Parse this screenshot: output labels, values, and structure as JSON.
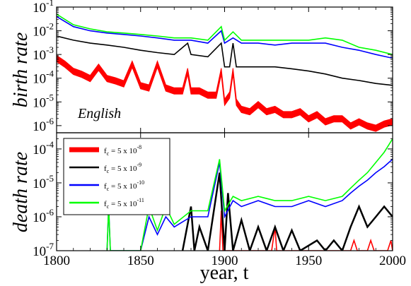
{
  "chart_data": [
    {
      "type": "line",
      "panel": "top",
      "ylabel": "birth rate",
      "annotation": "English",
      "y_scale": "log",
      "xlim": [
        1800,
        2000
      ],
      "ylim": [
        5e-07,
        0.1
      ],
      "y_ticks": [
        1e-06,
        1e-05,
        0.0001,
        0.001,
        0.01,
        0.1
      ],
      "y_tick_labels": [
        {
          "base": "10",
          "exp": "-6"
        },
        {
          "base": "10",
          "exp": "-5"
        },
        {
          "base": "10",
          "exp": "-4"
        },
        {
          "base": "10",
          "exp": "-3"
        },
        {
          "base": "10",
          "exp": "-2"
        },
        {
          "base": "10",
          "exp": "-1"
        }
      ],
      "series": [
        {
          "color": "#ff0000",
          "style": "band",
          "points": [
            [
              1800,
              0.0007
            ],
            [
              1805,
              0.0004
            ],
            [
              1810,
              0.0002
            ],
            [
              1815,
              0.00015
            ],
            [
              1820,
              0.0001
            ],
            [
              1825,
              0.0003
            ],
            [
              1830,
              0.0001
            ],
            [
              1835,
              8e-05
            ],
            [
              1840,
              6e-05
            ],
            [
              1845,
              0.0004
            ],
            [
              1850,
              5e-05
            ],
            [
              1855,
              4e-05
            ],
            [
              1860,
              0.0004
            ],
            [
              1865,
              4e-05
            ],
            [
              1870,
              3e-05
            ],
            [
              1875,
              3e-05
            ],
            [
              1878,
              0.0002
            ],
            [
              1880,
              3e-05
            ],
            [
              1885,
              3e-05
            ],
            [
              1890,
              2e-05
            ],
            [
              1895,
              2e-05
            ],
            [
              1898,
              0.0002
            ],
            [
              1900,
              1e-05
            ],
            [
              1903,
              2e-05
            ],
            [
              1905,
              0.0002
            ],
            [
              1907,
              1e-05
            ],
            [
              1910,
              5e-06
            ],
            [
              1915,
              4e-06
            ],
            [
              1920,
              8e-06
            ],
            [
              1925,
              4e-06
            ],
            [
              1930,
              5e-06
            ],
            [
              1935,
              3e-06
            ],
            [
              1940,
              3e-06
            ],
            [
              1945,
              4e-06
            ],
            [
              1950,
              2e-06
            ],
            [
              1955,
              3e-06
            ],
            [
              1960,
              1.5e-06
            ],
            [
              1965,
              2e-06
            ],
            [
              1970,
              2e-06
            ],
            [
              1975,
              1e-06
            ],
            [
              1980,
              1.5e-06
            ],
            [
              1985,
              1e-06
            ],
            [
              1990,
              8e-07
            ],
            [
              1995,
              1.2e-06
            ],
            [
              2000,
              1.5e-06
            ]
          ]
        },
        {
          "color": "#000000",
          "points": [
            [
              1800,
              0.006
            ],
            [
              1810,
              0.004
            ],
            [
              1820,
              0.003
            ],
            [
              1830,
              0.0025
            ],
            [
              1840,
              0.002
            ],
            [
              1850,
              0.0015
            ],
            [
              1860,
              0.0012
            ],
            [
              1870,
              0.001
            ],
            [
              1878,
              0.003
            ],
            [
              1880,
              0.001
            ],
            [
              1890,
              0.0008
            ],
            [
              1898,
              0.003
            ],
            [
              1900,
              0.0003
            ],
            [
              1903,
              0.0003
            ],
            [
              1905,
              0.003
            ],
            [
              1907,
              0.0003
            ],
            [
              1910,
              0.0003
            ],
            [
              1920,
              0.0003
            ],
            [
              1930,
              0.0003
            ],
            [
              1940,
              0.00025
            ],
            [
              1950,
              0.0002
            ],
            [
              1960,
              0.00015
            ],
            [
              1970,
              0.0001
            ],
            [
              1980,
              8e-05
            ],
            [
              1990,
              6e-05
            ],
            [
              2000,
              5e-05
            ]
          ]
        },
        {
          "color": "#0000ff",
          "points": [
            [
              1800,
              0.04
            ],
            [
              1810,
              0.015
            ],
            [
              1820,
              0.01
            ],
            [
              1830,
              0.008
            ],
            [
              1840,
              0.007
            ],
            [
              1850,
              0.006
            ],
            [
              1860,
              0.005
            ],
            [
              1870,
              0.004
            ],
            [
              1880,
              0.004
            ],
            [
              1890,
              0.003
            ],
            [
              1898,
              0.01
            ],
            [
              1900,
              0.003
            ],
            [
              1905,
              0.005
            ],
            [
              1910,
              0.003
            ],
            [
              1920,
              0.003
            ],
            [
              1930,
              0.0025
            ],
            [
              1940,
              0.003
            ],
            [
              1950,
              0.003
            ],
            [
              1960,
              0.003
            ],
            [
              1970,
              0.002
            ],
            [
              1980,
              0.0015
            ],
            [
              1990,
              0.001
            ],
            [
              2000,
              0.0007
            ]
          ]
        },
        {
          "color": "#00ff00",
          "points": [
            [
              1800,
              0.05
            ],
            [
              1810,
              0.018
            ],
            [
              1820,
              0.012
            ],
            [
              1830,
              0.009
            ],
            [
              1840,
              0.008
            ],
            [
              1850,
              0.007
            ],
            [
              1860,
              0.006
            ],
            [
              1870,
              0.005
            ],
            [
              1880,
              0.005
            ],
            [
              1890,
              0.004
            ],
            [
              1898,
              0.015
            ],
            [
              1900,
              0.004
            ],
            [
              1905,
              0.009
            ],
            [
              1910,
              0.004
            ],
            [
              1920,
              0.004
            ],
            [
              1930,
              0.004
            ],
            [
              1940,
              0.004
            ],
            [
              1950,
              0.004
            ],
            [
              1960,
              0.005
            ],
            [
              1970,
              0.004
            ],
            [
              1980,
              0.002
            ],
            [
              1990,
              0.0015
            ],
            [
              2000,
              0.001
            ]
          ]
        }
      ]
    },
    {
      "type": "line",
      "panel": "bottom",
      "xlabel": "year, t",
      "ylabel": "death rate",
      "y_scale": "log",
      "xlim": [
        1800,
        2000
      ],
      "ylim": [
        1e-07,
        0.0003
      ],
      "x_ticks": [
        1800,
        1850,
        1900,
        1950,
        2000
      ],
      "y_ticks": [
        1e-07,
        1e-06,
        1e-05,
        0.0001
      ],
      "y_tick_labels": [
        {
          "base": "10",
          "exp": "-7"
        },
        {
          "base": "10",
          "exp": "-6"
        },
        {
          "base": "10",
          "exp": "-5"
        },
        {
          "base": "10",
          "exp": "-4"
        }
      ],
      "legend_position": "top-left",
      "series": [
        {
          "name": "fc = 5 x 10-8",
          "legend": {
            "f": "f",
            "sub": "c",
            "mid": " = 5 x 10",
            "exp": "-8"
          },
          "color": "#ff0000",
          "points": [
            [
              1897,
              1e-07
            ],
            [
              1898,
              1.5e-06
            ],
            [
              1899,
              1e-07
            ],
            [
              1928,
              1e-07
            ],
            [
              1930,
              5e-07
            ],
            [
              1931,
              1e-07
            ],
            [
              1975,
              1e-07
            ],
            [
              1977,
              2e-07
            ],
            [
              1979,
              1e-07
            ],
            [
              1985,
              1e-07
            ],
            [
              1987,
              2e-07
            ],
            [
              1989,
              1e-07
            ],
            [
              1997,
              1e-07
            ],
            [
              1999,
              2e-07
            ],
            [
              2000,
              1e-07
            ]
          ]
        },
        {
          "name": "fc = 5 x 10-9",
          "legend": {
            "f": "f",
            "sub": "c",
            "mid": " = 5 x 10",
            "exp": "-9"
          },
          "color": "#000000",
          "points": [
            [
              1875,
              1e-07
            ],
            [
              1880,
              2e-06
            ],
            [
              1882,
              1e-07
            ],
            [
              1885,
              5e-07
            ],
            [
              1890,
              1e-07
            ],
            [
              1897,
              2e-05
            ],
            [
              1900,
              1e-07
            ],
            [
              1902,
              5e-06
            ],
            [
              1905,
              1e-07
            ],
            [
              1910,
              8e-07
            ],
            [
              1915,
              1e-07
            ],
            [
              1920,
              5e-07
            ],
            [
              1925,
              1e-07
            ],
            [
              1930,
              5e-07
            ],
            [
              1935,
              1e-07
            ],
            [
              1940,
              4e-07
            ],
            [
              1945,
              1e-07
            ],
            [
              1955,
              2e-07
            ],
            [
              1960,
              1e-07
            ],
            [
              1965,
              2e-07
            ],
            [
              1970,
              1e-07
            ],
            [
              1975,
              5e-07
            ],
            [
              1980,
              2e-06
            ],
            [
              1985,
              5e-07
            ],
            [
              1990,
              1e-06
            ],
            [
              1995,
              2e-06
            ],
            [
              2000,
              1e-06
            ]
          ]
        },
        {
          "name": "fc = 5 x 10-10",
          "legend": {
            "f": "f",
            "sub": "c",
            "mid": " = 5 x 10",
            "exp": "-10"
          },
          "color": "#0000ff",
          "points": [
            [
              1830,
              1e-07
            ],
            [
              1831,
              2e-06
            ],
            [
              1832,
              1e-07
            ],
            [
              1850,
              1e-07
            ],
            [
              1855,
              1e-06
            ],
            [
              1860,
              3e-07
            ],
            [
              1865,
              1e-06
            ],
            [
              1870,
              5e-07
            ],
            [
              1880,
              1e-06
            ],
            [
              1890,
              1e-06
            ],
            [
              1897,
              4e-05
            ],
            [
              1900,
              1e-06
            ],
            [
              1905,
              3e-06
            ],
            [
              1910,
              2e-06
            ],
            [
              1920,
              3e-06
            ],
            [
              1930,
              2e-06
            ],
            [
              1940,
              2e-06
            ],
            [
              1950,
              3e-06
            ],
            [
              1960,
              2e-06
            ],
            [
              1970,
              3e-06
            ],
            [
              1975,
              5e-06
            ],
            [
              1980,
              8e-06
            ],
            [
              1985,
              1.2e-05
            ],
            [
              1990,
              2e-05
            ],
            [
              1995,
              3e-05
            ],
            [
              2000,
              5e-05
            ]
          ]
        },
        {
          "name": "fc = 5 x 10-11",
          "legend": {
            "f": "f",
            "sub": "c",
            "mid": " = 5 x 10",
            "exp": "-11"
          },
          "color": "#00ff00",
          "points": [
            [
              1830,
              1e-07
            ],
            [
              1831,
              2e-06
            ],
            [
              1832,
              1e-07
            ],
            [
              1850,
              1e-07
            ],
            [
              1855,
              2e-06
            ],
            [
              1860,
              4e-07
            ],
            [
              1865,
              2e-06
            ],
            [
              1870,
              6e-07
            ],
            [
              1880,
              1.5e-06
            ],
            [
              1890,
              1.5e-06
            ],
            [
              1897,
              5e-05
            ],
            [
              1900,
              1.5e-06
            ],
            [
              1905,
              4e-06
            ],
            [
              1910,
              3e-06
            ],
            [
              1920,
              4e-06
            ],
            [
              1930,
              3e-06
            ],
            [
              1940,
              3e-06
            ],
            [
              1950,
              4e-06
            ],
            [
              1960,
              3e-06
            ],
            [
              1970,
              4e-06
            ],
            [
              1975,
              7e-06
            ],
            [
              1980,
              1.2e-05
            ],
            [
              1985,
              2e-05
            ],
            [
              1990,
              4e-05
            ],
            [
              1995,
              8e-05
            ],
            [
              2000,
              0.0002
            ]
          ]
        }
      ]
    }
  ]
}
